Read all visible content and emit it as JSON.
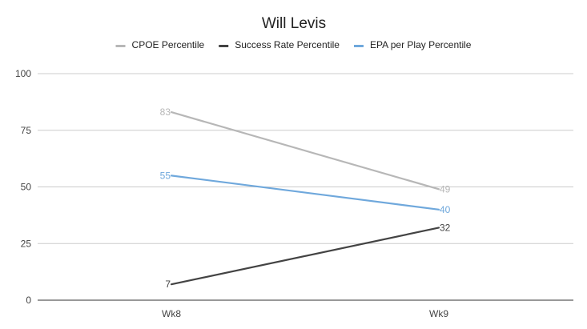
{
  "chart_data": {
    "type": "line",
    "title": "Will Levis",
    "categories": [
      "Wk8",
      "Wk9"
    ],
    "ylim": [
      0,
      100
    ],
    "yticks": [
      0,
      25,
      50,
      75,
      100
    ],
    "grid": true,
    "legend_position": "top",
    "series": [
      {
        "name": "CPOE Percentile",
        "values": [
          83,
          49
        ],
        "color": "#b7b7b7"
      },
      {
        "name": "Success Rate Percentile",
        "values": [
          7,
          32
        ],
        "color": "#434343"
      },
      {
        "name": "EPA per Play Percentile",
        "values": [
          55,
          40
        ],
        "color": "#6fa8dc"
      }
    ]
  }
}
